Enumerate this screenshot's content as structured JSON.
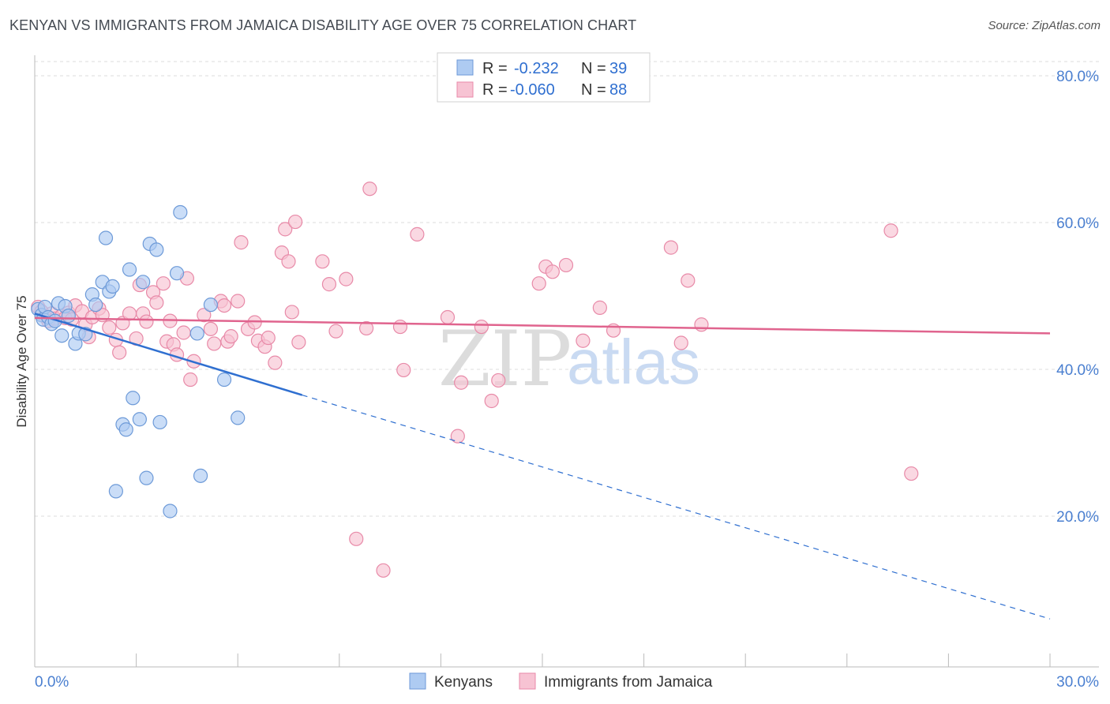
{
  "title": "KENYAN VS IMMIGRANTS FROM JAMAICA DISABILITY AGE OVER 75 CORRELATION CHART",
  "source": "Source: ZipAtlas.com",
  "watermark": {
    "zip": "ZIP",
    "atlas": "atlas"
  },
  "legend_top": {
    "rows": [
      {
        "r_label": "R =",
        "r_value": "-0.232",
        "n_label": "N =",
        "n_value": "39"
      },
      {
        "r_label": "R =",
        "r_value": "-0.060",
        "n_label": "N =",
        "n_value": "88"
      }
    ]
  },
  "legend_bottom": {
    "items": [
      {
        "label": "Kenyans"
      },
      {
        "label": "Immigrants from Jamaica"
      }
    ]
  },
  "colors": {
    "kenyan_fill": "#aecbf2",
    "kenyan_stroke": "#6d9ad8",
    "kenyan_line": "#2f6fd0",
    "jamaica_fill": "#f7c3d3",
    "jamaica_stroke": "#e88aa8",
    "jamaica_line": "#e0648e",
    "grid": "#dcdcdc",
    "tick_text": "#4a7fd0"
  },
  "chart_data": {
    "type": "scatter",
    "title": "KENYAN VS IMMIGRANTS FROM JAMAICA DISABILITY AGE OVER 75 CORRELATION CHART",
    "xlabel": "",
    "ylabel": "Disability Age Over 75",
    "xlim": [
      0,
      30
    ],
    "ylim": [
      0,
      85
    ],
    "x_tick_labels": [
      "0.0%",
      "30.0%"
    ],
    "y_ticks": [
      20,
      40,
      60,
      80
    ],
    "y_tick_labels": [
      "20.0%",
      "40.0%",
      "60.0%",
      "80.0%"
    ],
    "grid": true,
    "legend_position": "top-center",
    "series": [
      {
        "name": "Kenyans",
        "r": -0.232,
        "n": 39,
        "trend": {
          "x0": 0.0,
          "y0": 47.6,
          "x1": 7.9,
          "y1": 36.5,
          "dashed_to_x": 30.0,
          "dashed_to_y": 6.0
        },
        "points": [
          [
            0.1,
            48.2
          ],
          [
            0.2,
            47.4
          ],
          [
            0.25,
            46.8
          ],
          [
            0.3,
            48.5
          ],
          [
            0.4,
            47.1
          ],
          [
            0.5,
            46.2
          ],
          [
            0.6,
            46.6
          ],
          [
            0.7,
            49.0
          ],
          [
            0.8,
            44.6
          ],
          [
            0.9,
            48.6
          ],
          [
            1.0,
            47.3
          ],
          [
            1.2,
            43.5
          ],
          [
            1.3,
            44.9
          ],
          [
            1.5,
            44.8
          ],
          [
            1.7,
            50.2
          ],
          [
            1.8,
            48.8
          ],
          [
            2.0,
            51.9
          ],
          [
            2.1,
            57.9
          ],
          [
            2.2,
            50.6
          ],
          [
            2.3,
            51.3
          ],
          [
            2.4,
            23.4
          ],
          [
            2.6,
            32.5
          ],
          [
            2.7,
            31.8
          ],
          [
            2.8,
            53.6
          ],
          [
            2.9,
            36.1
          ],
          [
            3.1,
            33.2
          ],
          [
            3.2,
            51.9
          ],
          [
            3.3,
            25.2
          ],
          [
            3.4,
            57.1
          ],
          [
            3.6,
            56.3
          ],
          [
            3.7,
            32.8
          ],
          [
            4.0,
            20.7
          ],
          [
            4.2,
            53.1
          ],
          [
            4.3,
            61.4
          ],
          [
            4.8,
            44.9
          ],
          [
            4.9,
            25.5
          ],
          [
            5.2,
            48.8
          ],
          [
            5.6,
            38.6
          ],
          [
            6.0,
            33.4
          ]
        ]
      },
      {
        "name": "Immigrants from Jamaica",
        "r": -0.06,
        "n": 88,
        "trend": {
          "x0": 0.0,
          "y0": 47.0,
          "x1": 30.0,
          "y1": 44.9
        },
        "points": [
          [
            0.1,
            48.5
          ],
          [
            0.2,
            47.9
          ],
          [
            0.3,
            47.2
          ],
          [
            0.4,
            46.6
          ],
          [
            0.5,
            47.6
          ],
          [
            0.6,
            46.9
          ],
          [
            0.8,
            47.3
          ],
          [
            1.0,
            47.7
          ],
          [
            1.2,
            48.7
          ],
          [
            1.4,
            47.9
          ],
          [
            1.5,
            46.1
          ],
          [
            1.6,
            44.4
          ],
          [
            1.7,
            47.1
          ],
          [
            1.9,
            48.3
          ],
          [
            2.0,
            47.4
          ],
          [
            2.2,
            45.7
          ],
          [
            2.4,
            44.0
          ],
          [
            2.5,
            42.3
          ],
          [
            2.6,
            46.3
          ],
          [
            2.8,
            47.6
          ],
          [
            3.0,
            44.2
          ],
          [
            3.1,
            51.5
          ],
          [
            3.2,
            47.6
          ],
          [
            3.3,
            46.5
          ],
          [
            3.5,
            50.5
          ],
          [
            3.6,
            49.1
          ],
          [
            3.8,
            51.7
          ],
          [
            3.9,
            43.8
          ],
          [
            4.0,
            46.6
          ],
          [
            4.1,
            43.4
          ],
          [
            4.2,
            42.0
          ],
          [
            4.4,
            45.0
          ],
          [
            4.5,
            52.4
          ],
          [
            4.6,
            38.6
          ],
          [
            4.7,
            41.1
          ],
          [
            5.0,
            47.4
          ],
          [
            5.2,
            45.5
          ],
          [
            5.3,
            43.5
          ],
          [
            5.5,
            49.3
          ],
          [
            5.6,
            48.7
          ],
          [
            5.7,
            43.8
          ],
          [
            5.8,
            44.5
          ],
          [
            6.0,
            49.3
          ],
          [
            6.1,
            57.3
          ],
          [
            6.3,
            45.5
          ],
          [
            6.5,
            46.4
          ],
          [
            6.6,
            43.9
          ],
          [
            6.8,
            43.1
          ],
          [
            6.9,
            44.3
          ],
          [
            7.1,
            40.9
          ],
          [
            7.3,
            55.9
          ],
          [
            7.4,
            59.1
          ],
          [
            7.5,
            54.7
          ],
          [
            7.6,
            47.8
          ],
          [
            7.7,
            60.1
          ],
          [
            7.8,
            43.7
          ],
          [
            8.5,
            54.7
          ],
          [
            8.7,
            51.6
          ],
          [
            8.9,
            45.2
          ],
          [
            9.2,
            52.3
          ],
          [
            9.5,
            16.9
          ],
          [
            9.8,
            45.6
          ],
          [
            9.9,
            64.6
          ],
          [
            10.3,
            12.6
          ],
          [
            10.8,
            45.8
          ],
          [
            10.9,
            39.9
          ],
          [
            11.3,
            58.4
          ],
          [
            12.2,
            47.1
          ],
          [
            12.5,
            30.9
          ],
          [
            12.6,
            38.2
          ],
          [
            13.2,
            45.8
          ],
          [
            13.5,
            35.7
          ],
          [
            13.7,
            38.5
          ],
          [
            14.9,
            51.7
          ],
          [
            15.1,
            54.0
          ],
          [
            15.3,
            53.3
          ],
          [
            15.7,
            54.2
          ],
          [
            16.2,
            43.9
          ],
          [
            16.7,
            48.4
          ],
          [
            17.1,
            45.3
          ],
          [
            18.8,
            56.6
          ],
          [
            19.1,
            43.6
          ],
          [
            19.3,
            52.1
          ],
          [
            19.7,
            46.1
          ],
          [
            25.3,
            58.9
          ],
          [
            25.9,
            25.8
          ],
          [
            0.9,
            47.0
          ],
          [
            1.1,
            46.8
          ]
        ]
      }
    ]
  }
}
